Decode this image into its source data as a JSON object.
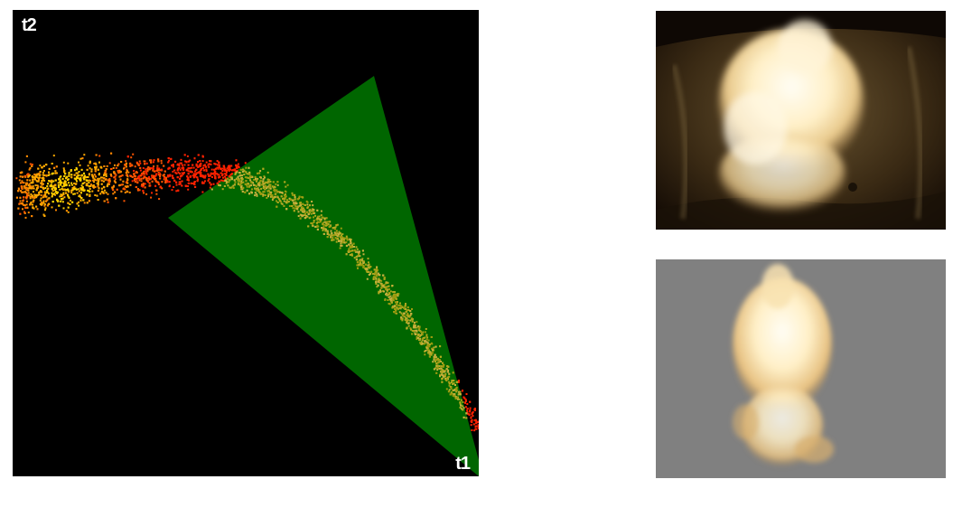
{
  "histogram": {
    "x_axis_label": "t1",
    "y_axis_label": "t2",
    "background_color": "#000000",
    "selection_wedge_color": "#006600",
    "point_colors": {
      "outside_selection": [
        "#ff2200",
        "#ff5500",
        "#ff8800",
        "#ffaa00",
        "#ffd000"
      ],
      "inside_selection": [
        "#9a9a10",
        "#b0a820",
        "#c8b040"
      ]
    }
  },
  "images": {
    "original": {
      "description_icon": "flame-photo-icon",
      "background_color": "#2a1c0c"
    },
    "segmented": {
      "description_icon": "segmented-flame-icon",
      "background_color": "#808080"
    }
  }
}
